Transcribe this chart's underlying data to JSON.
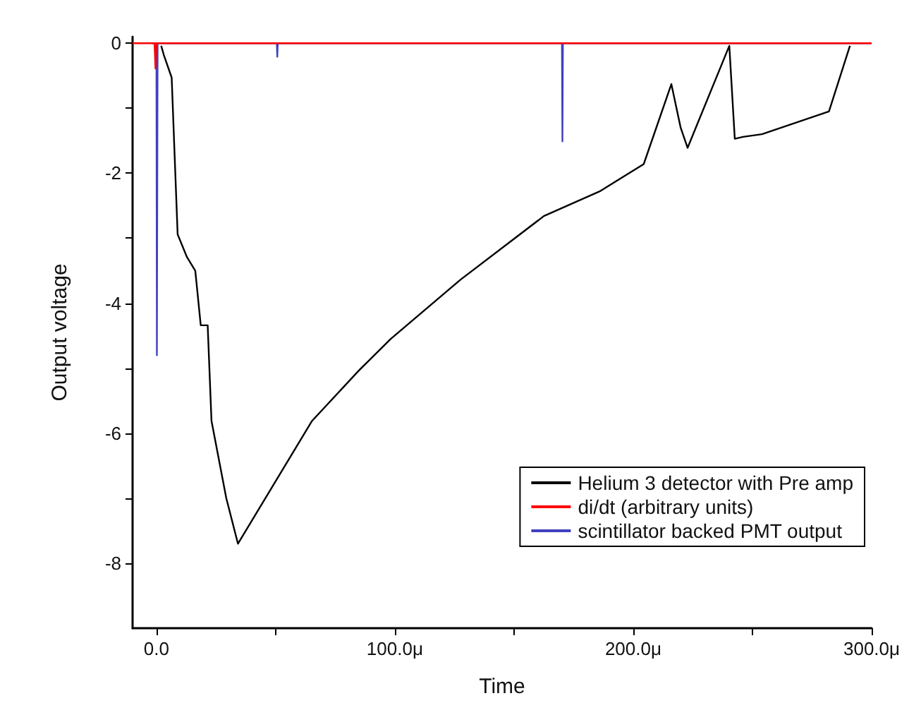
{
  "chart_data": {
    "type": "line",
    "xlabel": "Time",
    "ylabel": "Output voltage",
    "xlim": [
      -10,
      300
    ],
    "ylim": [
      -9,
      0.1
    ],
    "xticks": [
      {
        "value": 0,
        "label": "0.0"
      },
      {
        "value": 50,
        "label": null
      },
      {
        "value": 100,
        "label": "100.0μ"
      },
      {
        "value": 150,
        "label": null
      },
      {
        "value": 200,
        "label": "200.0μ"
      },
      {
        "value": 250,
        "label": null
      },
      {
        "value": 300,
        "label": "300.0μ"
      }
    ],
    "yticks": [
      {
        "value": -8,
        "label": "-8"
      },
      {
        "value": -7,
        "label": null
      },
      {
        "value": -6,
        "label": "-6"
      },
      {
        "value": -5,
        "label": null
      },
      {
        "value": -4,
        "label": "-4"
      },
      {
        "value": -3,
        "label": null
      },
      {
        "value": -2,
        "label": "-2"
      },
      {
        "value": -1,
        "label": null
      },
      {
        "value": 0,
        "label": "0"
      }
    ],
    "grid": false,
    "legend": "bottom right",
    "marker": "none",
    "line_style": "solid",
    "series": [
      {
        "name": "Helium 3 detector with Pre amp",
        "color": "#000000",
        "x": [
          2,
          3.1,
          6.4,
          8.9,
          12.8,
          16.3,
          18.6,
          21.5,
          23.1,
          29.3,
          34.2,
          65.3,
          84.8,
          98.3,
          127.5,
          162.5,
          185.9,
          204.4,
          216,
          219.9,
          222.8,
          240.3,
          242.6,
          246.1,
          254,
          282.1,
          290.9
        ],
        "values": [
          -0.04,
          -0.18,
          -0.53,
          -2.94,
          -3.29,
          -3.5,
          -4.34,
          -4.34,
          -5.81,
          -7,
          -7.7,
          -5.81,
          -5.04,
          -4.55,
          -3.64,
          -2.66,
          -2.28,
          -1.86,
          -0.63,
          -1.3,
          -1.61,
          -0.04,
          -1.47,
          -1.44,
          -1.4,
          -1.05,
          -0.04
        ]
      },
      {
        "name": "di/dt (arbitrary units)",
        "color": "#ff0000",
        "x": [
          -10,
          -0.8,
          -0.4,
          0,
          300
        ],
        "values": [
          0,
          0,
          -0.39,
          0,
          0
        ]
      },
      {
        "name": "scintillator backed PMT output",
        "color": "#4040c0",
        "x": [
          -2,
          0,
          0.2,
          0.5,
          50.5,
          50.7,
          50.9,
          170.1,
          170.3,
          170.5,
          300
        ],
        "values": [
          0,
          0,
          -4.8,
          0,
          0,
          -0.21,
          0,
          0,
          -1.51,
          0,
          0
        ]
      }
    ]
  }
}
